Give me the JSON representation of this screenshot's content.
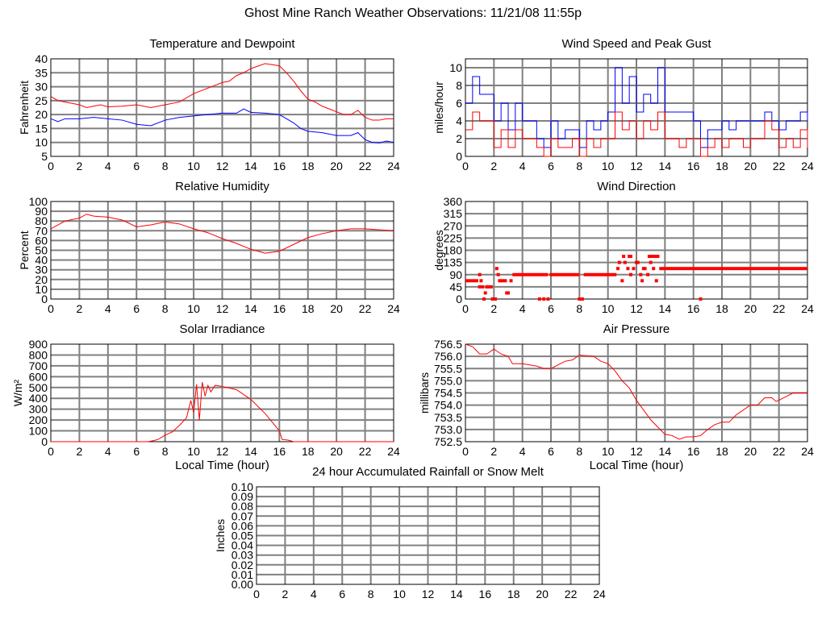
{
  "title": "Ghost Mine Ranch Weather Observations: 11/21/08 11:55p",
  "colors": {
    "red": "#ff0000",
    "blue": "#0000ff",
    "grid": "#808080"
  },
  "chart_data": [
    {
      "id": "temp",
      "type": "line",
      "title": "Temperature and Dewpoint",
      "xlabel": "",
      "ylabel": "Fahrenheit",
      "xlim": [
        0,
        24
      ],
      "ylim": [
        5,
        40
      ],
      "xticks": [
        "0",
        "2",
        "4",
        "6",
        "8",
        "10",
        "12",
        "14",
        "16",
        "18",
        "20",
        "22",
        "24"
      ],
      "yticks": [
        "5",
        "10",
        "15",
        "20",
        "25",
        "30",
        "35",
        "40"
      ],
      "series": [
        {
          "name": "Temperature",
          "color": "#ff0000",
          "x": [
            0,
            0.5,
            1,
            2,
            2.5,
            3,
            3.5,
            4,
            5,
            6,
            7,
            8,
            9,
            10,
            11,
            12,
            12.5,
            13,
            13.5,
            14,
            15,
            16,
            16.5,
            17,
            17.5,
            18,
            18.5,
            19,
            19.5,
            20,
            20.5,
            21,
            21.5,
            22,
            22.5,
            23,
            23.5,
            24
          ],
          "y": [
            26.5,
            25,
            24.5,
            23.5,
            22.5,
            23,
            23.5,
            22.8,
            23,
            23.5,
            22.5,
            23.5,
            24.5,
            27.5,
            29.5,
            31.5,
            32,
            34,
            35,
            36.5,
            38.3,
            37.5,
            35,
            32,
            28.5,
            25.5,
            24.5,
            23,
            22,
            21,
            20,
            20,
            21.5,
            19,
            18,
            18,
            18.5,
            18.5
          ]
        },
        {
          "name": "Dewpoint",
          "color": "#0000ff",
          "x": [
            0,
            0.5,
            1,
            2,
            3,
            4,
            5,
            6,
            7,
            8,
            9,
            10,
            11,
            12,
            13,
            13.5,
            14,
            15,
            16,
            16.5,
            17,
            17.5,
            18,
            19,
            20,
            21,
            21.5,
            22,
            22.5,
            23,
            23.5,
            24
          ],
          "y": [
            18.5,
            17.5,
            18.5,
            18.5,
            19,
            18.5,
            18,
            16.5,
            16,
            18,
            19,
            19.5,
            20,
            20.5,
            20.5,
            22,
            20.8,
            20.5,
            20,
            18.5,
            17,
            15,
            14,
            13.5,
            12.5,
            12.5,
            13.5,
            11,
            10,
            9.8,
            10.5,
            10
          ]
        }
      ]
    },
    {
      "id": "wind",
      "type": "line",
      "title": "Wind Speed and Peak Gust",
      "xlabel": "",
      "ylabel": "miles/hour",
      "xlim": [
        0,
        24
      ],
      "ylim": [
        0,
        11
      ],
      "xticks": [
        "0",
        "2",
        "4",
        "6",
        "8",
        "10",
        "12",
        "14",
        "16",
        "18",
        "20",
        "22",
        "24"
      ],
      "yticks": [
        "0",
        "2",
        "4",
        "6",
        "8",
        "10"
      ],
      "series": [
        {
          "name": "Peak Gust",
          "color": "#0000ff",
          "y": [
            6,
            9,
            7,
            7,
            4,
            6,
            3,
            6,
            4,
            4,
            2,
            1,
            4,
            2,
            3,
            3,
            1,
            4,
            3,
            4,
            5,
            10,
            6,
            9,
            5,
            7,
            6,
            10,
            5,
            5,
            5,
            5,
            4,
            1,
            3,
            3,
            4,
            3,
            4,
            4,
            4,
            4,
            5,
            4,
            3,
            4,
            4,
            5,
            4
          ]
        },
        {
          "name": "Wind Speed",
          "color": "#ff0000",
          "y": [
            3,
            5,
            4,
            4,
            1,
            3,
            1,
            3,
            2,
            2,
            1,
            0,
            2,
            1,
            1,
            2,
            0,
            2,
            1,
            2,
            2,
            5,
            3,
            4,
            2,
            4,
            3,
            5,
            2,
            2,
            1,
            2,
            2,
            0,
            1,
            2,
            1,
            2,
            2,
            1,
            2,
            2,
            4,
            3,
            1,
            2,
            1,
            3,
            1
          ]
        }
      ]
    },
    {
      "id": "humidity",
      "type": "line",
      "title": "Relative Humidity",
      "xlabel": "",
      "ylabel": "Percent",
      "xlim": [
        0,
        24
      ],
      "ylim": [
        0,
        100
      ],
      "xticks": [
        "0",
        "2",
        "4",
        "6",
        "8",
        "10",
        "12",
        "14",
        "16",
        "18",
        "20",
        "22",
        "24"
      ],
      "yticks": [
        "0",
        "10",
        "20",
        "30",
        "40",
        "50",
        "60",
        "70",
        "80",
        "90",
        "100"
      ],
      "series": [
        {
          "name": "Relative Humidity",
          "color": "#ff0000",
          "x": [
            0,
            1,
            2,
            2.5,
            3,
            4,
            5,
            6,
            7,
            8,
            9,
            10,
            11,
            12,
            13,
            14,
            15,
            16,
            17,
            18,
            19,
            20,
            21,
            22,
            23,
            24
          ],
          "y": [
            72,
            80,
            83,
            87,
            85,
            84,
            81,
            74,
            76,
            79,
            77,
            72,
            68,
            62,
            57,
            51,
            47,
            49,
            56,
            63,
            67,
            70,
            72,
            72,
            71,
            70
          ]
        }
      ]
    },
    {
      "id": "winddir",
      "type": "scatter",
      "title": "Wind Direction",
      "xlabel": "",
      "ylabel": "degrees",
      "xlim": [
        0,
        24
      ],
      "ylim": [
        0,
        360
      ],
      "xticks": [
        "0",
        "2",
        "4",
        "6",
        "8",
        "10",
        "12",
        "14",
        "16",
        "18",
        "20",
        "22",
        "24"
      ],
      "yticks": [
        "0",
        "45",
        "90",
        "135",
        "180",
        "225",
        "270",
        "315",
        "360"
      ],
      "segments": [
        [
          0,
          0.9,
          67.5
        ],
        [
          3.3,
          5.8,
          90
        ],
        [
          5.9,
          8.0,
          90
        ],
        [
          8.3,
          10.6,
          90
        ],
        [
          13.6,
          24,
          112.5
        ]
      ],
      "points": [
        [
          1.0,
          90
        ],
        [
          1.0,
          45
        ],
        [
          1.1,
          67.5
        ],
        [
          1.2,
          45
        ],
        [
          1.3,
          0
        ],
        [
          1.4,
          22.5
        ],
        [
          1.5,
          45
        ],
        [
          1.6,
          45
        ],
        [
          1.8,
          45
        ],
        [
          1.9,
          0
        ],
        [
          2.0,
          0
        ],
        [
          2.1,
          0
        ],
        [
          2.2,
          112.5
        ],
        [
          2.3,
          90
        ],
        [
          2.4,
          67.5
        ],
        [
          2.6,
          67.5
        ],
        [
          2.8,
          67.5
        ],
        [
          2.9,
          22.5
        ],
        [
          3.0,
          22.5
        ],
        [
          3.2,
          67.5
        ],
        [
          5.2,
          0
        ],
        [
          5.5,
          0
        ],
        [
          5.8,
          0
        ],
        [
          8.0,
          0
        ],
        [
          8.2,
          0
        ],
        [
          10.7,
          112.5
        ],
        [
          10.8,
          135
        ],
        [
          11.0,
          67.5
        ],
        [
          11.1,
          157.5
        ],
        [
          11.2,
          135
        ],
        [
          11.4,
          112.5
        ],
        [
          11.5,
          157.5
        ],
        [
          11.6,
          157.5
        ],
        [
          11.6,
          90
        ],
        [
          11.8,
          112.5
        ],
        [
          12.0,
          135
        ],
        [
          12.1,
          135
        ],
        [
          12.3,
          90
        ],
        [
          12.4,
          67.5
        ],
        [
          12.5,
          112.5
        ],
        [
          12.6,
          112.5
        ],
        [
          12.8,
          90
        ],
        [
          12.9,
          157.5
        ],
        [
          13.0,
          135
        ],
        [
          13.1,
          157.5
        ],
        [
          13.2,
          112.5
        ],
        [
          13.3,
          157.5
        ],
        [
          13.4,
          67.5
        ],
        [
          13.5,
          157.5
        ],
        [
          16.5,
          0
        ]
      ]
    },
    {
      "id": "solar",
      "type": "line",
      "title": "Solar Irradiance",
      "xlabel": "Local Time (hour)",
      "ylabel": "W/m²",
      "xlim": [
        0,
        24
      ],
      "ylim": [
        0,
        900
      ],
      "xticks": [
        "0",
        "2",
        "4",
        "6",
        "8",
        "10",
        "12",
        "14",
        "16",
        "18",
        "20",
        "22",
        "24"
      ],
      "yticks": [
        "0",
        "100",
        "200",
        "300",
        "400",
        "500",
        "600",
        "700",
        "800",
        "900"
      ],
      "series": [
        {
          "name": "Solar Irradiance",
          "color": "#ff0000",
          "x": [
            0,
            6.8,
            7,
            7.5,
            8,
            8.5,
            9,
            9.5,
            9.8,
            10,
            10.2,
            10.4,
            10.6,
            10.8,
            11,
            11.2,
            11.5,
            12,
            13,
            14,
            15,
            15.5,
            16,
            16.2,
            16.6,
            17,
            24
          ],
          "y": [
            0,
            0,
            5,
            20,
            60,
            90,
            150,
            220,
            380,
            270,
            530,
            200,
            550,
            420,
            520,
            460,
            520,
            510,
            480,
            390,
            260,
            180,
            100,
            20,
            15,
            0,
            0
          ]
        }
      ]
    },
    {
      "id": "pressure",
      "type": "line",
      "title": "Air Pressure",
      "xlabel": "Local Time (hour)",
      "ylabel": "millibars",
      "xlim": [
        0,
        24
      ],
      "ylim": [
        752.5,
        756.5
      ],
      "xticks": [
        "0",
        "2",
        "4",
        "6",
        "8",
        "10",
        "12",
        "14",
        "16",
        "18",
        "20",
        "22",
        "24"
      ],
      "yticks": [
        "752.5",
        "753.0",
        "753.5",
        "754.0",
        "754.5",
        "755.0",
        "755.5",
        "756.0",
        "756.5"
      ],
      "series": [
        {
          "name": "Air Pressure",
          "color": "#ff0000",
          "x": [
            0,
            0.5,
            1,
            1.5,
            2,
            2.5,
            3,
            3.3,
            4,
            5,
            5.5,
            6,
            6.5,
            7,
            7.5,
            8,
            9,
            9.5,
            10,
            10.5,
            11,
            11.5,
            12,
            12.5,
            13,
            13.5,
            14,
            14.5,
            15,
            15.5,
            16,
            16.5,
            17,
            17.5,
            18,
            18.5,
            19,
            19.5,
            20,
            20.5,
            21,
            21.5,
            21.8,
            22,
            22.5,
            23,
            24
          ],
          "y": [
            756.5,
            756.4,
            756.1,
            756.1,
            756.3,
            756.1,
            756.0,
            755.7,
            755.7,
            755.6,
            755.5,
            755.5,
            755.65,
            755.8,
            755.85,
            756.05,
            756.0,
            755.8,
            755.7,
            755.4,
            755.0,
            754.7,
            754.2,
            753.8,
            753.4,
            753.1,
            752.8,
            752.75,
            752.6,
            752.7,
            752.7,
            752.75,
            753.0,
            753.2,
            753.3,
            753.3,
            753.6,
            753.8,
            754.0,
            754.0,
            754.3,
            754.3,
            754.15,
            754.2,
            754.35,
            754.5,
            754.5
          ]
        }
      ]
    },
    {
      "id": "rain",
      "type": "line",
      "title": "24 hour Accumulated Rainfall or Snow Melt",
      "xlabel": "",
      "ylabel": "Inches",
      "xlim": [
        0,
        24
      ],
      "ylim": [
        0,
        0.1
      ],
      "xticks": [
        "0",
        "2",
        "4",
        "6",
        "8",
        "10",
        "12",
        "14",
        "16",
        "18",
        "20",
        "22",
        "24"
      ],
      "yticks": [
        "0.00",
        "0.01",
        "0.02",
        "0.03",
        "0.04",
        "0.05",
        "0.06",
        "0.07",
        "0.08",
        "0.09",
        "0.10"
      ],
      "series": []
    }
  ]
}
